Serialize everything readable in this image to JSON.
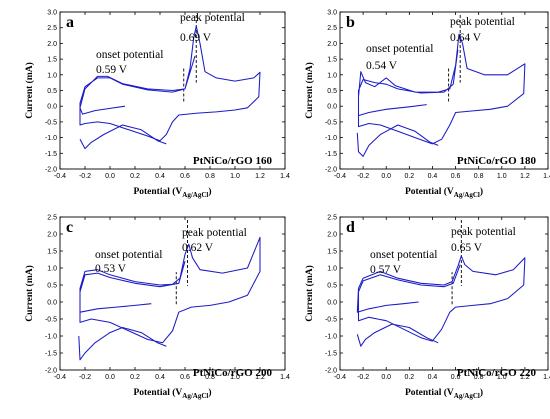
{
  "axes": {
    "xlabel": "Potential (V",
    "xlabel_sub": "Ag/AgCl",
    "xlabel_close": ")",
    "ylabel": "Current (mA)",
    "xticks": [
      "-0.4",
      "-0.2",
      "0.0",
      "0.2",
      "0.4",
      "0.6",
      "0.8",
      "1.0",
      "1.2",
      "1.4"
    ],
    "yticks": [
      "-2.0",
      "-1.5",
      "-1.0",
      "-0.5",
      "0.0",
      "0.5",
      "1.0",
      "1.5",
      "2.0",
      "2.5",
      "3.0"
    ]
  },
  "chart_data": [
    {
      "type": "line",
      "panel": "a",
      "sample": "PtNiCo/rGO 160",
      "xlim": [
        -0.4,
        1.4
      ],
      "ylim": [
        -2.0,
        3.0
      ],
      "onset_label": "onset potential",
      "onset_value": "0.59 V",
      "onset_x": 0.59,
      "peak_label": "peak potential",
      "peak_value": "0.69 V",
      "peak_x": 0.69,
      "series": [
        {
          "values": [
            [
              0.12,
              0.0
            ],
            [
              0.0,
              -0.07
            ],
            [
              -0.12,
              -0.14
            ],
            [
              -0.22,
              -0.25
            ],
            [
              -0.24,
              -0.05
            ],
            [
              -0.2,
              0.55
            ],
            [
              -0.1,
              0.95
            ],
            [
              -0.02,
              0.95
            ],
            [
              0.1,
              0.72
            ],
            [
              0.3,
              0.55
            ],
            [
              0.5,
              0.5
            ],
            [
              0.6,
              0.55
            ],
            [
              0.64,
              1.2
            ],
            [
              0.67,
              2.2
            ],
            [
              0.69,
              2.55
            ],
            [
              0.72,
              2.0
            ],
            [
              0.76,
              1.1
            ],
            [
              0.85,
              0.9
            ],
            [
              1.0,
              0.8
            ],
            [
              1.15,
              0.9
            ],
            [
              1.2,
              1.08
            ],
            [
              1.19,
              0.3
            ],
            [
              1.1,
              -0.05
            ],
            [
              1.0,
              -0.12
            ],
            [
              0.85,
              -0.18
            ],
            [
              0.7,
              -0.22
            ],
            [
              0.55,
              -0.28
            ],
            [
              0.5,
              -0.5
            ],
            [
              0.45,
              -0.9
            ],
            [
              0.4,
              -1.1
            ],
            [
              0.3,
              -0.95
            ],
            [
              0.15,
              -0.75
            ],
            [
              0.0,
              -0.55
            ],
            [
              -0.1,
              -0.5
            ],
            [
              -0.2,
              -0.55
            ],
            [
              -0.24,
              -0.6
            ],
            [
              -0.24,
              0.1
            ],
            [
              -0.2,
              0.62
            ],
            [
              -0.1,
              0.9
            ],
            [
              0.0,
              0.9
            ],
            [
              0.1,
              0.7
            ],
            [
              0.3,
              0.52
            ],
            [
              0.5,
              0.45
            ],
            [
              0.6,
              0.55
            ],
            [
              0.68,
              1.6
            ]
          ]
        },
        {
          "values": [
            [
              -0.24,
              -1.05
            ],
            [
              -0.2,
              -1.35
            ],
            [
              -0.15,
              -1.15
            ],
            [
              -0.05,
              -0.9
            ],
            [
              0.1,
              -0.6
            ],
            [
              0.25,
              -0.75
            ],
            [
              0.38,
              -1.1
            ],
            [
              0.45,
              -1.2
            ]
          ]
        }
      ]
    },
    {
      "type": "line",
      "panel": "b",
      "sample": "PtNiCo/rGO 180",
      "xlim": [
        -0.4,
        1.4
      ],
      "ylim": [
        -2.0,
        3.0
      ],
      "onset_label": "onset potential",
      "onset_value": "0.54 V",
      "onset_x": 0.54,
      "peak_label": "peak potential",
      "peak_value": "0.64 V",
      "peak_x": 0.64,
      "series": [
        {
          "values": [
            [
              0.35,
              0.05
            ],
            [
              0.2,
              -0.02
            ],
            [
              0.0,
              -0.1
            ],
            [
              -0.15,
              -0.2
            ],
            [
              -0.24,
              -0.3
            ],
            [
              -0.24,
              0.3
            ],
            [
              -0.22,
              1.1
            ],
            [
              -0.18,
              0.75
            ],
            [
              -0.1,
              0.62
            ],
            [
              0.0,
              0.9
            ],
            [
              0.08,
              0.65
            ],
            [
              0.25,
              0.45
            ],
            [
              0.45,
              0.45
            ],
            [
              0.55,
              0.55
            ],
            [
              0.6,
              1.3
            ],
            [
              0.63,
              2.3
            ],
            [
              0.66,
              2.0
            ],
            [
              0.7,
              1.2
            ],
            [
              0.85,
              1.0
            ],
            [
              1.05,
              1.0
            ],
            [
              1.2,
              1.35
            ],
            [
              1.19,
              0.4
            ],
            [
              1.05,
              0.0
            ],
            [
              0.9,
              -0.1
            ],
            [
              0.75,
              -0.15
            ],
            [
              0.6,
              -0.2
            ],
            [
              0.55,
              -0.6
            ],
            [
              0.48,
              -1.05
            ],
            [
              0.4,
              -1.2
            ],
            [
              0.25,
              -1.0
            ],
            [
              0.1,
              -0.8
            ],
            [
              -0.05,
              -0.6
            ],
            [
              -0.15,
              -0.55
            ],
            [
              -0.24,
              -0.65
            ],
            [
              -0.24,
              0.5
            ],
            [
              -0.2,
              0.85
            ],
            [
              -0.1,
              0.75
            ],
            [
              0.0,
              0.7
            ],
            [
              0.1,
              0.55
            ],
            [
              0.3,
              0.42
            ],
            [
              0.5,
              0.45
            ],
            [
              0.58,
              0.7
            ],
            [
              0.62,
              1.8
            ]
          ]
        },
        {
          "values": [
            [
              -0.25,
              -0.85
            ],
            [
              -0.24,
              -1.45
            ],
            [
              -0.2,
              -1.6
            ],
            [
              -0.15,
              -1.25
            ],
            [
              -0.05,
              -0.9
            ],
            [
              0.1,
              -0.6
            ],
            [
              0.25,
              -0.8
            ],
            [
              0.38,
              -1.15
            ],
            [
              0.45,
              -1.25
            ]
          ]
        }
      ]
    },
    {
      "type": "line",
      "panel": "c",
      "sample": "PtNiCo/rGO 200",
      "xlim": [
        -0.4,
        1.4
      ],
      "ylim": [
        -2.0,
        2.5
      ],
      "onset_label": "onset potential",
      "onset_value": "0.53 V",
      "onset_x": 0.53,
      "peak_label": "peak potential",
      "peak_value": "0.62 V",
      "peak_x": 0.62,
      "series": [
        {
          "values": [
            [
              0.33,
              -0.05
            ],
            [
              0.2,
              -0.1
            ],
            [
              0.05,
              -0.15
            ],
            [
              -0.1,
              -0.2
            ],
            [
              -0.24,
              -0.3
            ],
            [
              -0.24,
              0.4
            ],
            [
              -0.2,
              0.9
            ],
            [
              -0.1,
              0.95
            ],
            [
              0.0,
              0.8
            ],
            [
              0.2,
              0.6
            ],
            [
              0.4,
              0.5
            ],
            [
              0.5,
              0.52
            ],
            [
              0.56,
              0.7
            ],
            [
              0.6,
              1.4
            ],
            [
              0.63,
              1.7
            ],
            [
              0.66,
              1.3
            ],
            [
              0.72,
              0.95
            ],
            [
              0.9,
              0.85
            ],
            [
              1.1,
              1.0
            ],
            [
              1.2,
              1.9
            ],
            [
              1.2,
              0.9
            ],
            [
              1.1,
              0.2
            ],
            [
              0.95,
              0.0
            ],
            [
              0.8,
              -0.1
            ],
            [
              0.65,
              -0.15
            ],
            [
              0.55,
              -0.3
            ],
            [
              0.5,
              -0.85
            ],
            [
              0.42,
              -1.2
            ],
            [
              0.3,
              -1.1
            ],
            [
              0.15,
              -0.85
            ],
            [
              0.0,
              -0.6
            ],
            [
              -0.15,
              -0.5
            ],
            [
              -0.24,
              -0.6
            ],
            [
              -0.24,
              0.3
            ],
            [
              -0.2,
              0.8
            ],
            [
              -0.1,
              0.85
            ],
            [
              0.0,
              0.72
            ],
            [
              0.2,
              0.55
            ],
            [
              0.4,
              0.45
            ],
            [
              0.55,
              0.55
            ],
            [
              0.6,
              1.2
            ]
          ]
        },
        {
          "values": [
            [
              -0.25,
              -1.0
            ],
            [
              -0.24,
              -1.7
            ],
            [
              -0.2,
              -1.5
            ],
            [
              -0.12,
              -1.2
            ],
            [
              0.0,
              -0.9
            ],
            [
              0.1,
              -0.75
            ],
            [
              0.25,
              -0.9
            ],
            [
              0.38,
              -1.2
            ],
            [
              0.45,
              -1.3
            ]
          ]
        }
      ]
    },
    {
      "type": "line",
      "panel": "d",
      "sample": "PtNiCo/rGO 220",
      "xlim": [
        -0.4,
        1.4
      ],
      "ylim": [
        -2.0,
        2.5
      ],
      "onset_label": "onset potential",
      "onset_value": "0.57 V",
      "onset_x": 0.57,
      "peak_label": "peak potential",
      "peak_value": "0.65 V",
      "peak_x": 0.65,
      "series": [
        {
          "values": [
            [
              0.28,
              0.0
            ],
            [
              0.15,
              -0.05
            ],
            [
              0.0,
              -0.1
            ],
            [
              -0.15,
              -0.2
            ],
            [
              -0.25,
              -0.3
            ],
            [
              -0.24,
              0.4
            ],
            [
              -0.2,
              0.7
            ],
            [
              -0.05,
              0.9
            ],
            [
              0.1,
              0.7
            ],
            [
              0.3,
              0.55
            ],
            [
              0.5,
              0.5
            ],
            [
              0.57,
              0.6
            ],
            [
              0.62,
              1.05
            ],
            [
              0.65,
              1.35
            ],
            [
              0.68,
              1.1
            ],
            [
              0.75,
              0.9
            ],
            [
              0.95,
              0.8
            ],
            [
              1.1,
              0.95
            ],
            [
              1.2,
              1.3
            ],
            [
              1.19,
              0.5
            ],
            [
              1.05,
              0.1
            ],
            [
              0.9,
              -0.05
            ],
            [
              0.75,
              -0.1
            ],
            [
              0.6,
              -0.15
            ],
            [
              0.55,
              -0.3
            ],
            [
              0.48,
              -0.8
            ],
            [
              0.4,
              -1.15
            ],
            [
              0.3,
              -1.05
            ],
            [
              0.15,
              -0.8
            ],
            [
              0.0,
              -0.55
            ],
            [
              -0.15,
              -0.45
            ],
            [
              -0.24,
              -0.55
            ],
            [
              -0.24,
              0.3
            ],
            [
              -0.2,
              0.62
            ],
            [
              -0.05,
              0.8
            ],
            [
              0.1,
              0.65
            ],
            [
              0.3,
              0.5
            ],
            [
              0.5,
              0.45
            ],
            [
              0.58,
              0.55
            ],
            [
              0.64,
              1.1
            ]
          ]
        },
        {
          "values": [
            [
              -0.25,
              -0.95
            ],
            [
              -0.22,
              -1.3
            ],
            [
              -0.18,
              -1.1
            ],
            [
              -0.1,
              -0.9
            ],
            [
              0.05,
              -0.65
            ],
            [
              0.2,
              -0.75
            ],
            [
              0.35,
              -1.05
            ],
            [
              0.45,
              -1.2
            ]
          ]
        }
      ]
    }
  ]
}
